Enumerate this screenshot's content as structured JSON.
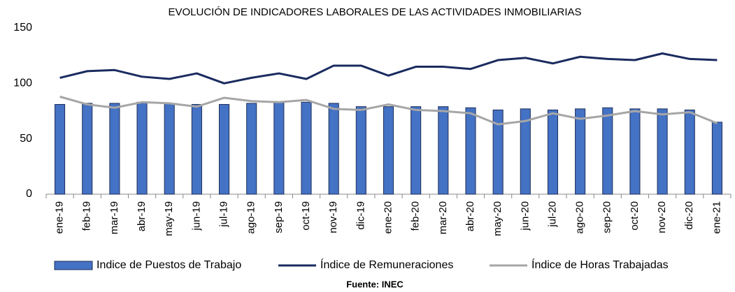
{
  "chart_data": {
    "type": "bar_line",
    "title": "EVOLUCIÓN DE INDICADORES LABORALES DE LAS ACTIVIDADES INMOBILIARIAS",
    "source": "Fuente: INEC",
    "categories": [
      "ene-19",
      "feb-19",
      "mar-19",
      "abr-19",
      "may-19",
      "jun-19",
      "jul-19",
      "ago-19",
      "sep-19",
      "oct-19",
      "nov-19",
      "dic-19",
      "ene-20",
      "feb-20",
      "mar-20",
      "abr-20",
      "may-20",
      "jun-20",
      "jul-20",
      "ago-20",
      "sep-20",
      "oct-20",
      "nov-20",
      "dic-20",
      "ene-21"
    ],
    "series": [
      {
        "name": "Indice de Puestos de Trabajo",
        "type": "bar",
        "color": "#4472c4",
        "values": [
          81,
          82,
          82,
          83,
          82,
          81,
          81,
          82,
          83,
          83,
          82,
          79,
          79,
          79,
          79,
          78,
          76,
          77,
          76,
          77,
          78,
          77,
          77,
          76,
          65
        ]
      },
      {
        "name": "Índice de Remuneraciones",
        "type": "line",
        "color": "#1a2b5f",
        "values": [
          105,
          111,
          112,
          106,
          104,
          109,
          100,
          105,
          109,
          104,
          116,
          116,
          107,
          115,
          115,
          113,
          121,
          123,
          118,
          124,
          122,
          121,
          127,
          122,
          121
        ]
      },
      {
        "name": "Índice de Horas Trabajadas",
        "type": "line",
        "color": "#a6a6a6",
        "values": [
          88,
          81,
          78,
          83,
          82,
          79,
          87,
          84,
          83,
          85,
          77,
          76,
          81,
          76,
          75,
          73,
          63,
          66,
          73,
          68,
          71,
          75,
          72,
          74,
          64
        ]
      }
    ],
    "ylim": [
      0,
      150
    ],
    "yticks": [
      0,
      50,
      100,
      150
    ],
    "grid": false,
    "legend": "bottom"
  }
}
